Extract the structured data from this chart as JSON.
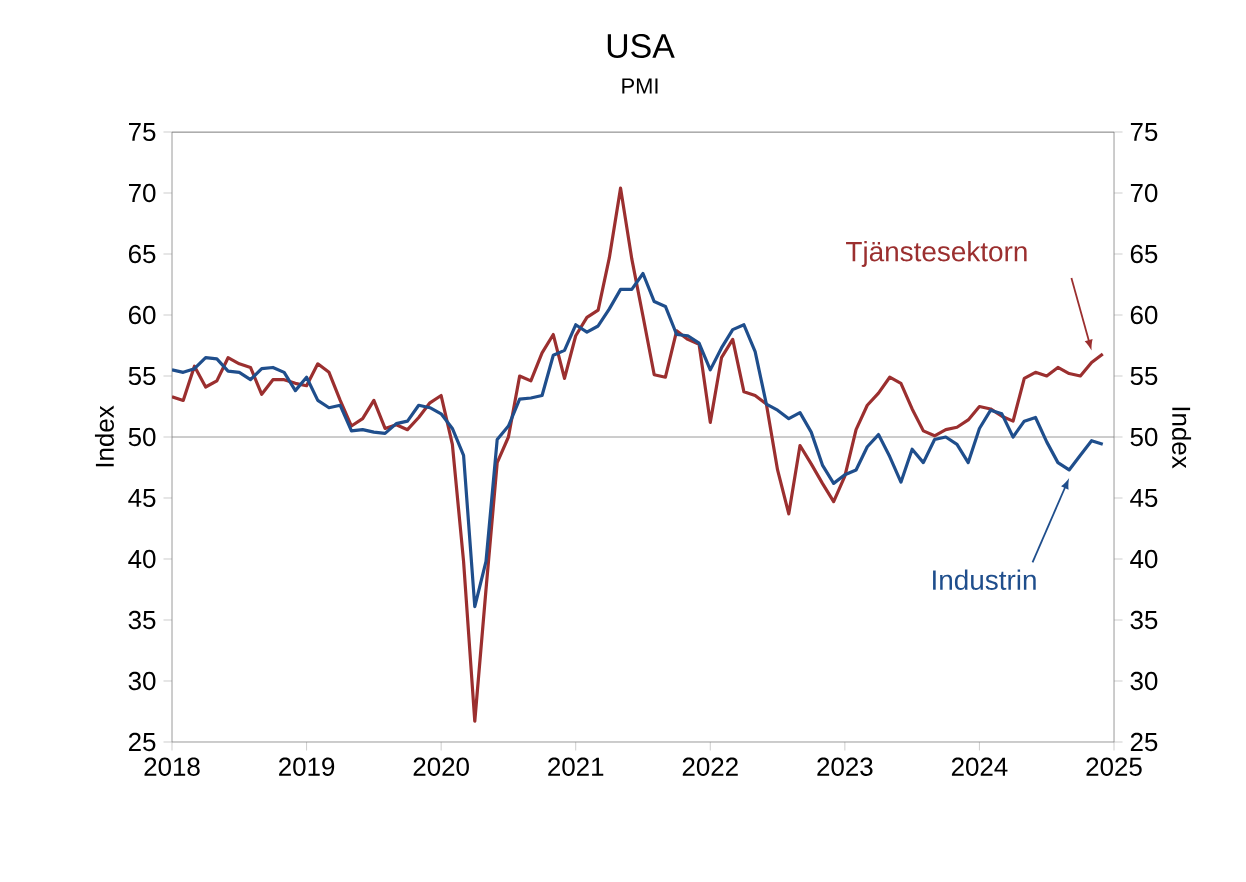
{
  "chart_data": {
    "type": "line",
    "title": "USA",
    "subtitle": "PMI",
    "ylabel": "Index",
    "y2label": "Index",
    "x": [
      "2018-01",
      "2018-02",
      "2018-03",
      "2018-04",
      "2018-05",
      "2018-06",
      "2018-07",
      "2018-08",
      "2018-09",
      "2018-10",
      "2018-11",
      "2018-12",
      "2019-01",
      "2019-02",
      "2019-03",
      "2019-04",
      "2019-05",
      "2019-06",
      "2019-07",
      "2019-08",
      "2019-09",
      "2019-10",
      "2019-11",
      "2019-12",
      "2020-01",
      "2020-02",
      "2020-03",
      "2020-04",
      "2020-05",
      "2020-06",
      "2020-07",
      "2020-08",
      "2020-09",
      "2020-10",
      "2020-11",
      "2020-12",
      "2021-01",
      "2021-02",
      "2021-03",
      "2021-04",
      "2021-05",
      "2021-06",
      "2021-07",
      "2021-08",
      "2021-09",
      "2021-10",
      "2021-11",
      "2021-12",
      "2022-01",
      "2022-02",
      "2022-03",
      "2022-04",
      "2022-05",
      "2022-06",
      "2022-07",
      "2022-08",
      "2022-09",
      "2022-10",
      "2022-11",
      "2022-12",
      "2023-01",
      "2023-02",
      "2023-03",
      "2023-04",
      "2023-05",
      "2023-06",
      "2023-07",
      "2023-08",
      "2023-09",
      "2023-10",
      "2023-11",
      "2023-12",
      "2024-01",
      "2024-02",
      "2024-03",
      "2024-04",
      "2024-05",
      "2024-06",
      "2024-07",
      "2024-08",
      "2024-09",
      "2024-10",
      "2024-11",
      "2024-12"
    ],
    "series": [
      {
        "name": "Tjänstesektorn",
        "color": "#9b2f2f",
        "values": [
          53.3,
          53.0,
          55.8,
          54.1,
          54.6,
          56.5,
          56.0,
          55.7,
          53.5,
          54.7,
          54.7,
          54.4,
          54.2,
          56.0,
          55.3,
          53.0,
          50.9,
          51.5,
          53.0,
          50.7,
          51.0,
          50.6,
          51.6,
          52.8,
          53.4,
          49.4,
          39.8,
          26.7,
          37.5,
          47.9,
          50.0,
          55.0,
          54.6,
          56.9,
          58.4,
          54.8,
          58.3,
          59.8,
          60.4,
          64.7,
          70.4,
          64.6,
          59.9,
          55.1,
          54.9,
          58.7,
          58.0,
          57.6,
          51.2,
          56.5,
          58.0,
          53.7,
          53.4,
          52.7,
          47.3,
          43.7,
          49.3,
          47.8,
          46.2,
          44.7,
          46.8,
          50.6,
          52.6,
          53.6,
          54.9,
          54.4,
          52.3,
          50.5,
          50.1,
          50.6,
          50.8,
          51.4,
          52.5,
          52.3,
          51.7,
          51.3,
          54.8,
          55.3,
          55.0,
          55.7,
          55.2,
          55.0,
          56.1,
          56.8
        ]
      },
      {
        "name": "Industrin",
        "color": "#1f4e8c",
        "values": [
          55.5,
          55.3,
          55.6,
          56.5,
          56.4,
          55.4,
          55.3,
          54.7,
          55.6,
          55.7,
          55.3,
          53.8,
          54.9,
          53.0,
          52.4,
          52.6,
          50.5,
          50.6,
          50.4,
          50.3,
          51.1,
          51.3,
          52.6,
          52.4,
          51.9,
          50.7,
          48.5,
          36.1,
          39.8,
          49.8,
          50.9,
          53.1,
          53.2,
          53.4,
          56.7,
          57.1,
          59.2,
          58.6,
          59.1,
          60.5,
          62.1,
          62.1,
          63.4,
          61.1,
          60.7,
          58.4,
          58.3,
          57.7,
          55.5,
          57.3,
          58.8,
          59.2,
          57.0,
          52.7,
          52.2,
          51.5,
          52.0,
          50.4,
          47.7,
          46.2,
          46.9,
          47.3,
          49.2,
          50.2,
          48.4,
          46.3,
          49.0,
          47.9,
          49.8,
          50.0,
          49.4,
          47.9,
          50.7,
          52.2,
          51.9,
          50.0,
          51.3,
          51.6,
          49.6,
          47.9,
          47.3,
          48.5,
          49.7,
          49.4
        ]
      }
    ],
    "xlim": [
      "2018",
      "2025"
    ],
    "xticks": [
      "2018",
      "2019",
      "2020",
      "2021",
      "2022",
      "2023",
      "2024",
      "2025"
    ],
    "ylim": [
      25,
      75
    ],
    "yticks": [
      25,
      30,
      35,
      40,
      45,
      50,
      55,
      60,
      65,
      70,
      75
    ],
    "y2lim": [
      25,
      75
    ],
    "y2ticks": [
      25,
      30,
      35,
      40,
      45,
      50,
      55,
      60,
      65,
      70,
      75
    ],
    "ref_lines": [
      {
        "axis": "y",
        "value": 50,
        "color": "#808080"
      }
    ],
    "grid": false,
    "legend": false,
    "marker": "none",
    "line_style": "solid"
  }
}
